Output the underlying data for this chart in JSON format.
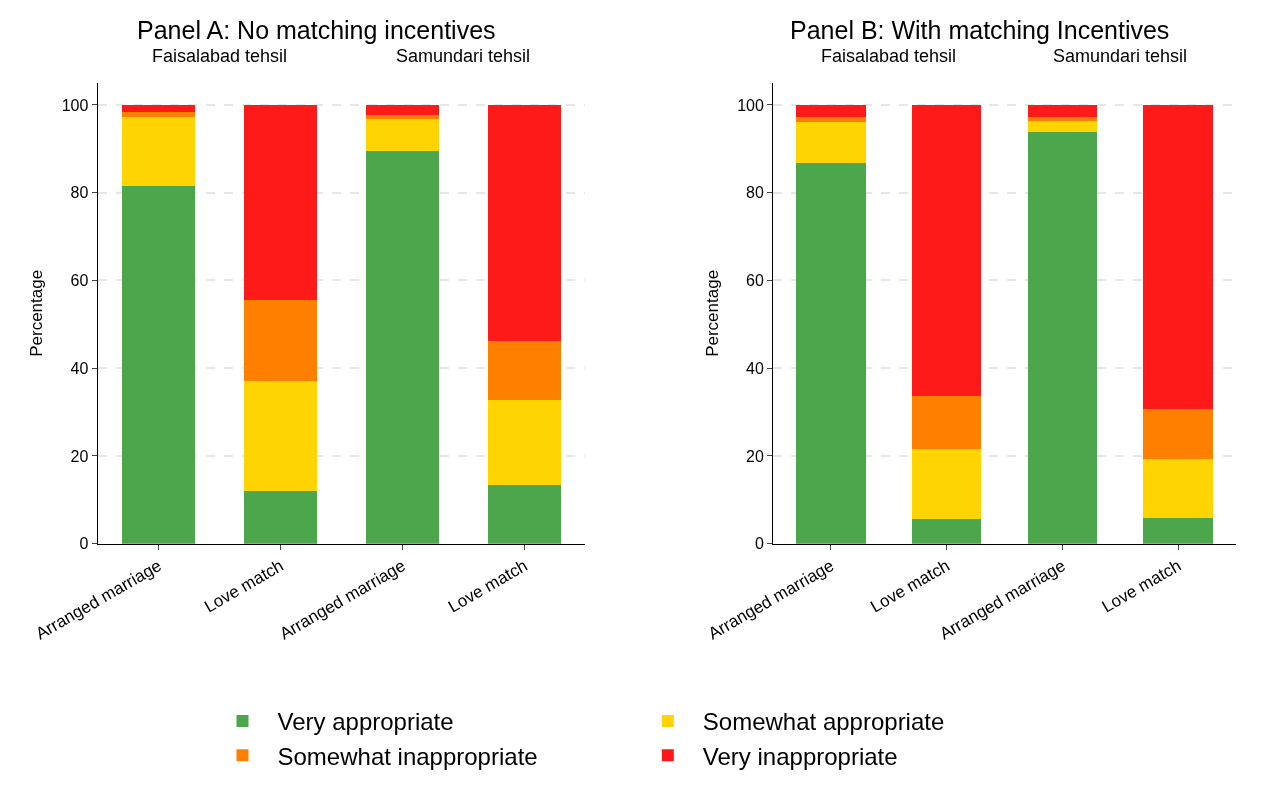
{
  "chart_data": [
    {
      "type": "bar",
      "title": "Panel A: No matching incentives",
      "ylabel": "Percentage",
      "stacked": true,
      "categories": [
        "Arranged marriage",
        "Love match",
        "Arranged marriage",
        "Love match"
      ],
      "annotations": [
        "Faisalabad tehsil",
        "Samundari tehsil"
      ],
      "series": [
        {
          "name": "Very appropriate",
          "color": "#4ca64c",
          "values": [
            81.5,
            12.1,
            89.5,
            13.3
          ]
        },
        {
          "name": "Somewhat appropriate",
          "color": "#ffd400",
          "values": [
            15.7,
            24.9,
            7.3,
            19.4
          ]
        },
        {
          "name": "Somewhat inappropriate",
          "color": "#ff7f00",
          "values": [
            1.2,
            18.5,
            1.0,
            13.6
          ]
        },
        {
          "name": "Very inappropriate",
          "color": "#ff1a1a",
          "values": [
            1.6,
            44.5,
            2.2,
            53.7
          ]
        }
      ],
      "ylim": [
        0,
        105
      ],
      "yticks": [
        0,
        20,
        40,
        60,
        80,
        100
      ],
      "grid": "y",
      "legend": "bottom"
    },
    {
      "type": "bar",
      "title": "Panel B: With matching Incentives",
      "ylabel": "Percentage",
      "stacked": true,
      "categories": [
        "Arranged marriage",
        "Love match",
        "Arranged marriage",
        "Love match"
      ],
      "annotations": [
        "Faisalabad tehsil",
        "Samundari tehsil"
      ],
      "series": [
        {
          "name": "Very appropriate",
          "color": "#4ca64c",
          "values": [
            86.7,
            5.6,
            93.9,
            5.8
          ]
        },
        {
          "name": "Somewhat appropriate",
          "color": "#ffd400",
          "values": [
            9.3,
            16.1,
            2.5,
            13.5
          ]
        },
        {
          "name": "Somewhat inappropriate",
          "color": "#ff7f00",
          "values": [
            1.2,
            11.9,
            0.8,
            11.5
          ]
        },
        {
          "name": "Very inappropriate",
          "color": "#ff1a1a",
          "values": [
            2.8,
            66.4,
            2.8,
            69.2
          ]
        }
      ],
      "ylim": [
        0,
        105
      ],
      "yticks": [
        0,
        20,
        40,
        60,
        80,
        100
      ],
      "grid": "y"
    }
  ]
}
